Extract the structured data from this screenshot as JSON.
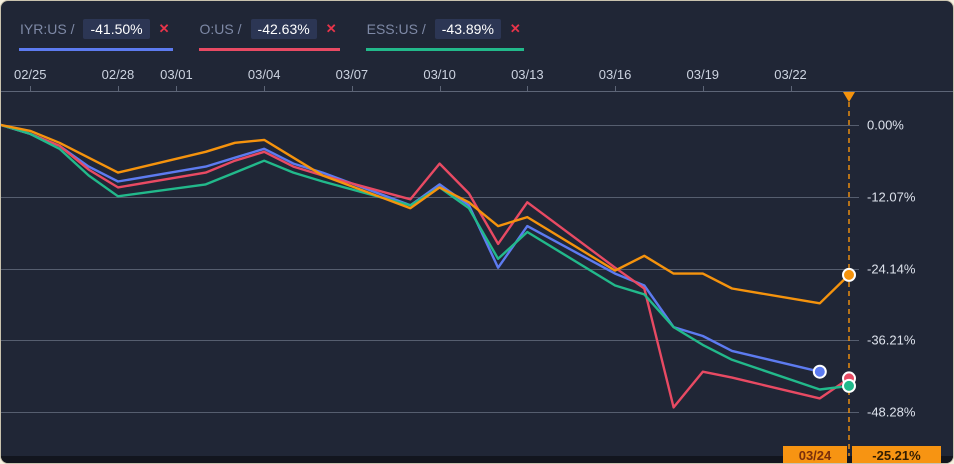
{
  "colors": {
    "background": "#202636",
    "bottom_bar": "#12151e",
    "grid": "#565e6f",
    "axis_text": "#dde2ec",
    "date_text": "#ccd3e0",
    "ticker_text": "#7e89a6",
    "chip_bg": "#2c3654",
    "remove_icon": "#e8344a",
    "cursor": "#f5930d",
    "tooltip_bg": "#f79412",
    "series_blue": "#5d7bf0",
    "series_red": "#e84a63",
    "series_green": "#22b98b",
    "series_orange": "#f5930d"
  },
  "legend": {
    "remove_glyph": "✕",
    "items": [
      {
        "ticker": "IYR:US /",
        "value": "-41.50%",
        "color": "#5d7bf0"
      },
      {
        "ticker": "O:US /",
        "value": "-42.63%",
        "color": "#e84a63"
      },
      {
        "ticker": "ESS:US /",
        "value": "-43.89%",
        "color": "#22b98b"
      }
    ]
  },
  "tooltip": {
    "date": "03/24",
    "value": "-25.21%"
  },
  "chart_data": {
    "type": "line",
    "title": "",
    "x_axis": {
      "tick_labels": [
        "02/25",
        "02/28",
        "03/01",
        "03/04",
        "03/07",
        "03/10",
        "03/13",
        "03/16",
        "03/19",
        "03/22"
      ],
      "tick_days": [
        1,
        4,
        6,
        9,
        12,
        15,
        18,
        21,
        24,
        27
      ],
      "range_days": [
        0,
        29.7
      ]
    },
    "y_axis": {
      "tick_labels": [
        "0.00%",
        "-12.07%",
        "-24.14%",
        "-36.21%",
        "-48.28%"
      ],
      "tick_values": [
        0,
        -12.07,
        -24.14,
        -36.21,
        -48.28
      ],
      "unit": "%",
      "grid": true
    },
    "cursor": {
      "day": 29,
      "date": "03/24",
      "value_label": "-25.21%",
      "series_color": "#f5930d"
    },
    "series": [
      {
        "name": "IYR:US",
        "color": "#5d7bf0",
        "dates": [
          "02/24",
          "02/25",
          "02/26",
          "02/27",
          "02/28",
          "03/02",
          "03/03",
          "03/04",
          "03/05",
          "03/06",
          "03/09",
          "03/10",
          "03/11",
          "03/12",
          "03/13",
          "03/16",
          "03/17",
          "03/18",
          "03/19",
          "03/20",
          "03/23"
        ],
        "days": [
          0,
          1,
          2,
          3,
          4,
          7,
          8,
          9,
          10,
          11,
          14,
          15,
          16,
          17,
          18,
          21,
          22,
          23,
          24,
          25,
          28
        ],
        "values": [
          0,
          -1.5,
          -3.5,
          -7.0,
          -9.5,
          -7.0,
          -5.5,
          -4.0,
          -6.5,
          -8.0,
          -13.5,
          -10.0,
          -13.5,
          -24.0,
          -17.0,
          -25.0,
          -27.0,
          -34.0,
          -35.5,
          -38.0,
          -41.5
        ],
        "end_label": "-41.50%"
      },
      {
        "name": "O:US",
        "color": "#e84a63",
        "dates": [
          "02/24",
          "02/25",
          "02/26",
          "02/27",
          "02/28",
          "03/02",
          "03/03",
          "03/04",
          "03/05",
          "03/06",
          "03/09",
          "03/10",
          "03/11",
          "03/12",
          "03/13",
          "03/16",
          "03/17",
          "03/18",
          "03/19",
          "03/20",
          "03/23",
          "03/24"
        ],
        "days": [
          0,
          1,
          2,
          3,
          4,
          7,
          8,
          9,
          10,
          11,
          14,
          15,
          16,
          17,
          18,
          21,
          22,
          23,
          24,
          25,
          28,
          29
        ],
        "values": [
          0,
          -1.5,
          -3.5,
          -7.5,
          -10.5,
          -8.0,
          -6.0,
          -4.5,
          -7.0,
          -8.5,
          -12.5,
          -6.5,
          -11.5,
          -20.0,
          -13.0,
          -24.0,
          -27.5,
          -47.5,
          -41.5,
          -42.5,
          -46.0,
          -42.63
        ],
        "end_label": "-42.63%"
      },
      {
        "name": "ESS:US",
        "color": "#22b98b",
        "dates": [
          "02/24",
          "02/25",
          "02/26",
          "02/27",
          "02/28",
          "03/02",
          "03/03",
          "03/04",
          "03/05",
          "03/06",
          "03/09",
          "03/10",
          "03/11",
          "03/12",
          "03/13",
          "03/16",
          "03/17",
          "03/18",
          "03/19",
          "03/20",
          "03/23",
          "03/24"
        ],
        "days": [
          0,
          1,
          2,
          3,
          4,
          7,
          8,
          9,
          10,
          11,
          14,
          15,
          16,
          17,
          18,
          21,
          22,
          23,
          24,
          25,
          28,
          29
        ],
        "values": [
          0,
          -1.5,
          -4.0,
          -8.5,
          -12.0,
          -10.0,
          -8.0,
          -6.0,
          -8.0,
          -9.5,
          -13.5,
          -10.5,
          -14.0,
          -22.5,
          -18.0,
          -27.0,
          -28.5,
          -34.0,
          -37.0,
          -39.5,
          -44.5,
          -43.89
        ],
        "end_label": "-43.89%"
      },
      {
        "name": "",
        "color": "#f5930d",
        "dates": [
          "02/24",
          "02/25",
          "02/26",
          "02/27",
          "02/28",
          "03/02",
          "03/03",
          "03/04",
          "03/05",
          "03/06",
          "03/09",
          "03/10",
          "03/11",
          "03/12",
          "03/13",
          "03/16",
          "03/17",
          "03/18",
          "03/19",
          "03/20",
          "03/23",
          "03/24"
        ],
        "days": [
          0,
          1,
          2,
          3,
          4,
          7,
          8,
          9,
          10,
          11,
          14,
          15,
          16,
          17,
          18,
          21,
          22,
          23,
          24,
          25,
          28,
          29
        ],
        "values": [
          0,
          -1.0,
          -3.0,
          -5.5,
          -8.0,
          -4.5,
          -3.0,
          -2.5,
          -5.5,
          -8.5,
          -14.0,
          -10.5,
          -13.0,
          -17.0,
          -15.5,
          -24.5,
          -22.0,
          -25.0,
          -25.0,
          -27.5,
          -30.0,
          -25.21
        ],
        "end_label": "-25.21%"
      }
    ]
  }
}
